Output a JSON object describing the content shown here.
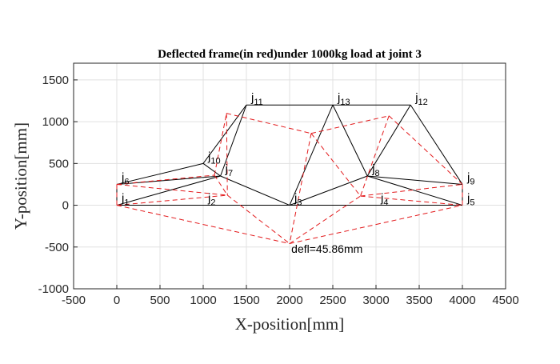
{
  "chart_data": {
    "type": "line",
    "title": "Deflected frame(in red)under 1000kg load at joint 3",
    "xlabel": "X-position[mm]",
    "ylabel": "Y-position[mm]",
    "xlim": [
      -500,
      4500
    ],
    "ylim": [
      -1000,
      1700
    ],
    "xticks": [
      -500,
      0,
      500,
      1000,
      1500,
      2000,
      2500,
      3000,
      3500,
      4000,
      4500
    ],
    "yticks": [
      -1000,
      -500,
      0,
      500,
      1000,
      1500
    ],
    "grid": true,
    "joints": [
      {
        "id": "j1",
        "x": 0,
        "y": 0
      },
      {
        "id": "j2",
        "x": 1000,
        "y": 0
      },
      {
        "id": "j3",
        "x": 2000,
        "y": 0
      },
      {
        "id": "j4",
        "x": 3000,
        "y": 0
      },
      {
        "id": "j5",
        "x": 4000,
        "y": 0
      },
      {
        "id": "j6",
        "x": 0,
        "y": 250
      },
      {
        "id": "j7",
        "x": 1200,
        "y": 350
      },
      {
        "id": "j8",
        "x": 2900,
        "y": 350
      },
      {
        "id": "j9",
        "x": 4000,
        "y": 250
      },
      {
        "id": "j10",
        "x": 1000,
        "y": 500
      },
      {
        "id": "j11",
        "x": 1500,
        "y": 1200
      },
      {
        "id": "j12",
        "x": 3400,
        "y": 1200
      },
      {
        "id": "j13",
        "x": 2500,
        "y": 1200
      }
    ],
    "members": [
      [
        "j1",
        "j2"
      ],
      [
        "j2",
        "j3"
      ],
      [
        "j3",
        "j4"
      ],
      [
        "j4",
        "j5"
      ],
      [
        "j1",
        "j6"
      ],
      [
        "j6",
        "j7"
      ],
      [
        "j6",
        "j10"
      ],
      [
        "j10",
        "j11"
      ],
      [
        "j10",
        "j7"
      ],
      [
        "j11",
        "j7"
      ],
      [
        "j11",
        "j13"
      ],
      [
        "j13",
        "j12"
      ],
      [
        "j13",
        "j3"
      ],
      [
        "j13",
        "j8"
      ],
      [
        "j12",
        "j8"
      ],
      [
        "j12",
        "j9"
      ],
      [
        "j1",
        "j7"
      ],
      [
        "j7",
        "j3"
      ],
      [
        "j3",
        "j8"
      ],
      [
        "j8",
        "j5"
      ],
      [
        "j8",
        "j9"
      ],
      [
        "j9",
        "j5"
      ]
    ],
    "deflected_joints": [
      {
        "id": "j1",
        "x": 0,
        "y": 0
      },
      {
        "id": "j2",
        "x": 1000,
        "y": -230
      },
      {
        "id": "j3",
        "x": 2000,
        "y": -459
      },
      {
        "id": "j4",
        "x": 3000,
        "y": -230
      },
      {
        "id": "j5",
        "x": 4000,
        "y": 0
      },
      {
        "id": "j6",
        "x": 0,
        "y": 250
      },
      {
        "id": "j7",
        "x": 1280,
        "y": 120
      },
      {
        "id": "j8",
        "x": 2820,
        "y": 110
      },
      {
        "id": "j9",
        "x": 4000,
        "y": 250
      },
      {
        "id": "j10",
        "x": 1130,
        "y": 360
      },
      {
        "id": "j11",
        "x": 1270,
        "y": 1100
      },
      {
        "id": "j12",
        "x": 3150,
        "y": 1070
      },
      {
        "id": "j13",
        "x": 2250,
        "y": 860
      }
    ],
    "annotation": {
      "text": "defl=45.86mm",
      "x": 2020,
      "y": -530
    },
    "colors": {
      "frame": "#000000",
      "deflected": "#e31a1c",
      "grid": "#e0e0e0",
      "axis": "#262626"
    }
  }
}
